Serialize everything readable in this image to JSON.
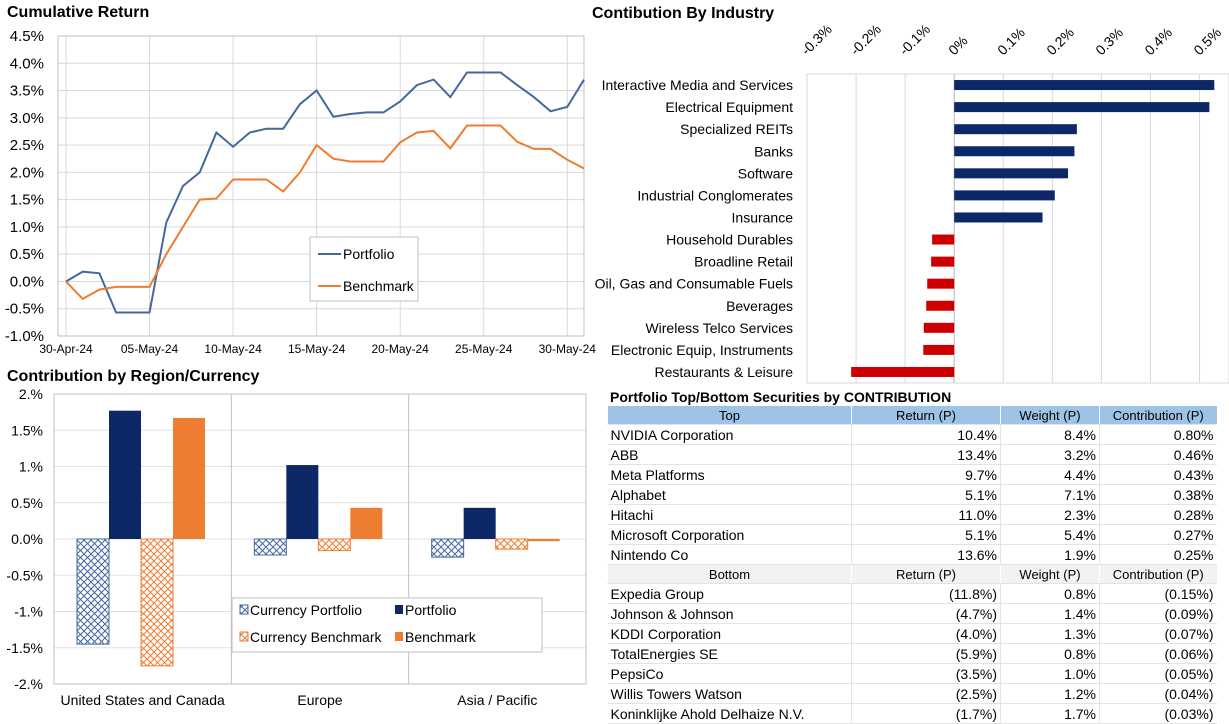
{
  "chart_data": [
    {
      "type": "line",
      "title": "Cumulative Return",
      "x": [
        "30-Apr-24",
        "01-May-24",
        "02-May-24",
        "03-May-24",
        "04-May-24",
        "05-May-24",
        "06-May-24",
        "07-May-24",
        "08-May-24",
        "09-May-24",
        "10-May-24",
        "11-May-24",
        "12-May-24",
        "13-May-24",
        "14-May-24",
        "15-May-24",
        "16-May-24",
        "17-May-24",
        "18-May-24",
        "19-May-24",
        "20-May-24",
        "21-May-24",
        "22-May-24",
        "23-May-24",
        "24-May-24",
        "25-May-24",
        "26-May-24",
        "27-May-24",
        "28-May-24",
        "29-May-24",
        "30-May-24",
        "31-May-24"
      ],
      "x_tick_labels": [
        "30-Apr-24",
        "05-May-24",
        "10-May-24",
        "15-May-24",
        "20-May-24",
        "25-May-24",
        "30-May-24"
      ],
      "series": [
        {
          "name": "Portfolio",
          "color": "#44679e",
          "values": [
            0.0,
            0.18,
            0.15,
            -0.57,
            -0.57,
            -0.57,
            1.08,
            1.75,
            2.0,
            2.73,
            2.47,
            2.73,
            2.8,
            2.8,
            3.25,
            3.5,
            3.02,
            3.07,
            3.1,
            3.1,
            3.3,
            3.6,
            3.7,
            3.38,
            3.83,
            3.83,
            3.83,
            3.6,
            3.38,
            3.12,
            3.2,
            3.7
          ]
        },
        {
          "name": "Benchmark",
          "color": "#ed7d31",
          "values": [
            0.0,
            -0.32,
            -0.15,
            -0.1,
            -0.1,
            -0.1,
            0.5,
            1.0,
            1.5,
            1.52,
            1.87,
            1.87,
            1.87,
            1.65,
            2.0,
            2.5,
            2.25,
            2.2,
            2.2,
            2.2,
            2.55,
            2.73,
            2.76,
            2.44,
            2.86,
            2.86,
            2.86,
            2.56,
            2.43,
            2.43,
            2.23,
            2.07
          ]
        }
      ],
      "y_tick_labels": [
        "-1.0%",
        "-0.5%",
        "0.0%",
        "0.5%",
        "1.0%",
        "1.5%",
        "2.0%",
        "2.5%",
        "3.0%",
        "3.5%",
        "4.0%",
        "4.5%"
      ],
      "ylim": [
        -1.0,
        4.5
      ],
      "grid": true,
      "legend": "center"
    },
    {
      "type": "bar",
      "orientation": "horizontal",
      "title": "Contibution By Industry",
      "categories": [
        "Interactive Media and Services",
        "Electrical Equipment",
        "Specialized REITs",
        "Banks",
        "Software",
        "Industrial Conglomerates",
        "Insurance",
        "Household Durables",
        "Broadline Retail",
        "Oil, Gas and Consumable Fuels",
        "Beverages",
        "Wireless Telco Services",
        "Electronic Equip, Instruments",
        "Restaurants & Leisure"
      ],
      "values": [
        0.53,
        0.52,
        0.25,
        0.245,
        0.232,
        0.205,
        0.18,
        -0.045,
        -0.047,
        -0.055,
        -0.057,
        -0.062,
        -0.063,
        -0.21
      ],
      "x_tick_labels": [
        "-0.3%",
        "-0.2%",
        "-0.1%",
        "0%",
        "0.1%",
        "0.2%",
        "0.3%",
        "0.4%",
        "0.5%"
      ],
      "xlim": [
        -0.3,
        0.56
      ],
      "colors": {
        "positive": "#0d2866",
        "negative": "#cc0000"
      },
      "grid": true
    },
    {
      "type": "bar",
      "title": "Contribution by Region/Currency",
      "categories": [
        "United States and Canada",
        "Europe",
        "Asia / Pacific"
      ],
      "series": [
        {
          "name": "Currency Portfolio",
          "values": [
            -1.45,
            -0.22,
            -0.25
          ],
          "color": "#44679e",
          "pattern": "crosshatch"
        },
        {
          "name": "Portfolio",
          "values": [
            1.77,
            1.02,
            0.43
          ],
          "color": "#0d2866",
          "pattern": "solid"
        },
        {
          "name": "Currency Benchmark",
          "values": [
            -1.75,
            -0.16,
            -0.14
          ],
          "color": "#ed7d31",
          "pattern": "crosshatch"
        },
        {
          "name": "Benchmark",
          "values": [
            1.67,
            0.43,
            -0.03
          ],
          "color": "#ed7d31",
          "pattern": "solid"
        }
      ],
      "y_tick_labels": [
        "-2.%",
        "-1.5%",
        "-1.%",
        "-0.5%",
        "0.0%",
        "0.5%",
        "1.%",
        "1.5%",
        "2.%"
      ],
      "ylim": [
        -2.0,
        2.0
      ],
      "grid": true,
      "legend": "bottom-right"
    },
    {
      "type": "table",
      "title": "Portfolio Top/Bottom Securities by CONTRIBUTION",
      "top": {
        "headers": [
          "Top",
          "Return (P)",
          "Weight (P)",
          "Contribution (P)"
        ],
        "rows": [
          [
            "NVIDIA Corporation",
            "10.4%",
            "8.4%",
            "0.80%"
          ],
          [
            "ABB",
            "13.4%",
            "3.2%",
            "0.46%"
          ],
          [
            "Meta Platforms",
            "9.7%",
            "4.4%",
            "0.43%"
          ],
          [
            "Alphabet",
            "5.1%",
            "7.1%",
            "0.38%"
          ],
          [
            "Hitachi",
            "11.0%",
            "2.3%",
            "0.28%"
          ],
          [
            "Microsoft Corporation",
            "5.1%",
            "5.4%",
            "0.27%"
          ],
          [
            "Nintendo Co",
            "13.6%",
            "1.9%",
            "0.25%"
          ]
        ]
      },
      "bottom": {
        "headers": [
          "Bottom",
          "Return (P)",
          "Weight (P)",
          "Contribution (P)"
        ],
        "rows": [
          [
            "Expedia Group",
            "(11.8%)",
            "0.8%",
            "(0.15%)"
          ],
          [
            "Johnson & Johnson",
            "(4.7%)",
            "1.4%",
            "(0.09%)"
          ],
          [
            "KDDI Corporation",
            "(4.0%)",
            "1.3%",
            "(0.07%)"
          ],
          [
            "TotalEnergies SE",
            "(5.9%)",
            "0.8%",
            "(0.06%)"
          ],
          [
            "PepsiCo",
            "(3.5%)",
            "1.0%",
            "(0.05%)"
          ],
          [
            "Willis Towers Watson",
            "(2.5%)",
            "1.2%",
            "(0.04%)"
          ],
          [
            "Koninklijke Ahold Delhaize N.V.",
            "(1.7%)",
            "1.7%",
            "(0.03%)"
          ]
        ]
      }
    }
  ]
}
